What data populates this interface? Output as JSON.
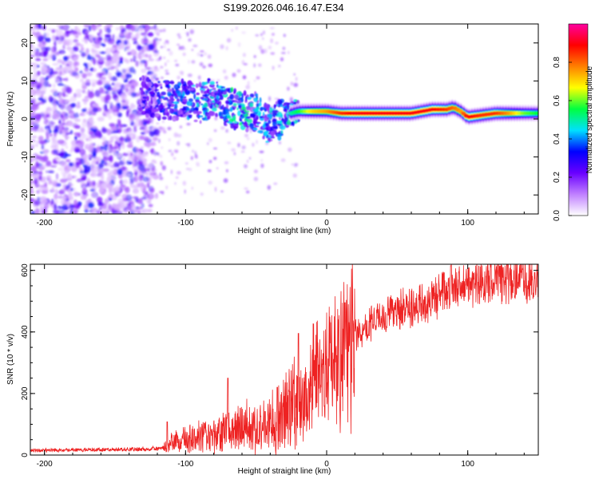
{
  "chart_data": [
    {
      "type": "heatmap",
      "title": "S199.2026.046.16.47.E34",
      "xlabel": "Height of straight line (km)",
      "ylabel": "Frequency (Hz)",
      "xlim": [
        -210,
        150
      ],
      "ylim": [
        -25,
        25
      ],
      "xticks": [
        -200,
        -100,
        0,
        100
      ],
      "yticks": [
        -20,
        -10,
        0,
        10,
        20
      ],
      "colorbar": {
        "label": "Normalized spectral amplitude",
        "range": [
          0,
          1
        ],
        "ticks": [
          "0.0",
          "0.2",
          "0.4",
          "0.6",
          "0.8"
        ],
        "colors": [
          "#ffffff",
          "#c080ff",
          "#6a00ff",
          "#0000ff",
          "#00e0ff",
          "#00ff40",
          "#ffff00",
          "#ff8000",
          "#ff0000",
          "#ff00a0"
        ]
      },
      "ridge": {
        "x": [
          -130,
          -120,
          -110,
          -100,
          -90,
          -80,
          -70,
          -60,
          -50,
          -40,
          -30,
          -20,
          -10,
          0,
          10,
          20,
          40,
          60,
          75,
          85,
          90,
          95,
          100,
          110,
          120,
          130,
          140,
          150
        ],
        "freq": [
          6,
          5,
          5,
          5,
          4,
          6,
          3,
          2,
          2,
          -2,
          1,
          2,
          2,
          2,
          1.5,
          1.5,
          1.5,
          1.5,
          2.5,
          2.5,
          3,
          2,
          0.5,
          1,
          1.5,
          1.5,
          1.5,
          1.5
        ],
        "amplitude": [
          0.3,
          0.35,
          0.4,
          0.4,
          0.45,
          0.45,
          0.5,
          0.5,
          0.45,
          0.45,
          0.45,
          0.55,
          0.7,
          0.75,
          0.85,
          0.9,
          0.9,
          0.9,
          0.9,
          0.85,
          0.8,
          0.75,
          0.9,
          0.85,
          0.85,
          0.75,
          0.6,
          0.55
        ]
      }
    },
    {
      "type": "line",
      "xlabel": "Height of straight line (km)",
      "ylabel": "SNR (10 * v/v)",
      "xlim": [
        -210,
        150
      ],
      "ylim": [
        0,
        620
      ],
      "xticks": [
        -200,
        -100,
        0,
        100
      ],
      "yticks": [
        0,
        200,
        400,
        600
      ],
      "color": "#ee2222",
      "series": [
        {
          "name": "SNR",
          "x": [
            -210,
            -180,
            -150,
            -120,
            -115,
            -110,
            -100,
            -90,
            -80,
            -70,
            -60,
            -50,
            -40,
            -30,
            -25,
            -20,
            -10,
            0,
            10,
            20,
            30,
            40,
            50,
            60,
            70,
            80,
            90,
            100,
            110,
            120,
            130,
            140,
            150
          ],
          "values": [
            15,
            17,
            18,
            20,
            25,
            40,
            50,
            60,
            70,
            80,
            90,
            95,
            100,
            130,
            150,
            170,
            230,
            280,
            340,
            390,
            420,
            450,
            470,
            480,
            490,
            520,
            545,
            555,
            565,
            570,
            565,
            570,
            575
          ],
          "peaks": [
            [
              -113,
              108
            ],
            [
              -70,
              250
            ],
            [
              -35,
              220
            ],
            [
              -20,
              395
            ],
            [
              13,
              495
            ],
            [
              88,
              615
            ]
          ]
        }
      ]
    }
  ]
}
